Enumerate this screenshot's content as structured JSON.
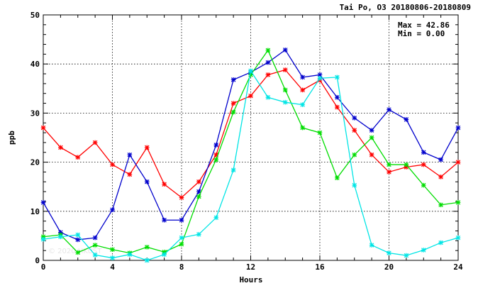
{
  "chart_data": {
    "type": "line",
    "title": "Tai Po, O3 20180806-20180809",
    "xlabel": "Hours",
    "ylabel": "ppb",
    "xlim": [
      0,
      24
    ],
    "ylim": [
      0,
      50
    ],
    "xticks": [
      0,
      4,
      8,
      12,
      16,
      20,
      24
    ],
    "yticks": [
      0,
      10,
      20,
      30,
      40,
      50
    ],
    "grid": true,
    "max_label": "Max = 42.86",
    "min_label": "Min =  0.00",
    "watermark": "© 2020 HKUST",
    "x": [
      0,
      1,
      2,
      3,
      4,
      5,
      6,
      7,
      8,
      9,
      10,
      11,
      12,
      13,
      14,
      15,
      16,
      17,
      18,
      19,
      20,
      21,
      22,
      23,
      24
    ],
    "series": [
      {
        "color": "#ff0000",
        "values": [
          27,
          23,
          21,
          24,
          19.5,
          17.5,
          23,
          15.5,
          12.8,
          16,
          21.5,
          32,
          33.5,
          37.8,
          38.8,
          34.7,
          36.7,
          31.2,
          26.5,
          21.5,
          18,
          19,
          19.5,
          17,
          20
        ]
      },
      {
        "color": "#0000cc",
        "values": [
          11.8,
          5.7,
          4.2,
          4.6,
          10.3,
          21.5,
          16,
          8.2,
          8.2,
          14,
          23.5,
          36.8,
          38.3,
          40.3,
          42.86,
          37.3,
          37.8,
          33.2,
          29,
          26.5,
          30.7,
          28.7,
          22,
          20.5,
          27
        ]
      },
      {
        "color": "#00dd00",
        "values": [
          4.8,
          5.2,
          1.6,
          3.1,
          2.2,
          1.5,
          2.7,
          1.7,
          3.3,
          13,
          20.5,
          30.2,
          37.8,
          42.8,
          34.7,
          27,
          26,
          16.8,
          21.5,
          25,
          19.5,
          19.5,
          15.3,
          11.3,
          11.8
        ]
      },
      {
        "color": "#00e5e5",
        "values": [
          4.3,
          4.8,
          5.2,
          1.1,
          0.5,
          1.2,
          0,
          1.2,
          4.6,
          5.3,
          8.7,
          18.4,
          38.6,
          33.2,
          32.2,
          31.7,
          37.1,
          37.3,
          15.3,
          3.1,
          1.5,
          1,
          2.1,
          3.6,
          4.6
        ]
      }
    ]
  }
}
